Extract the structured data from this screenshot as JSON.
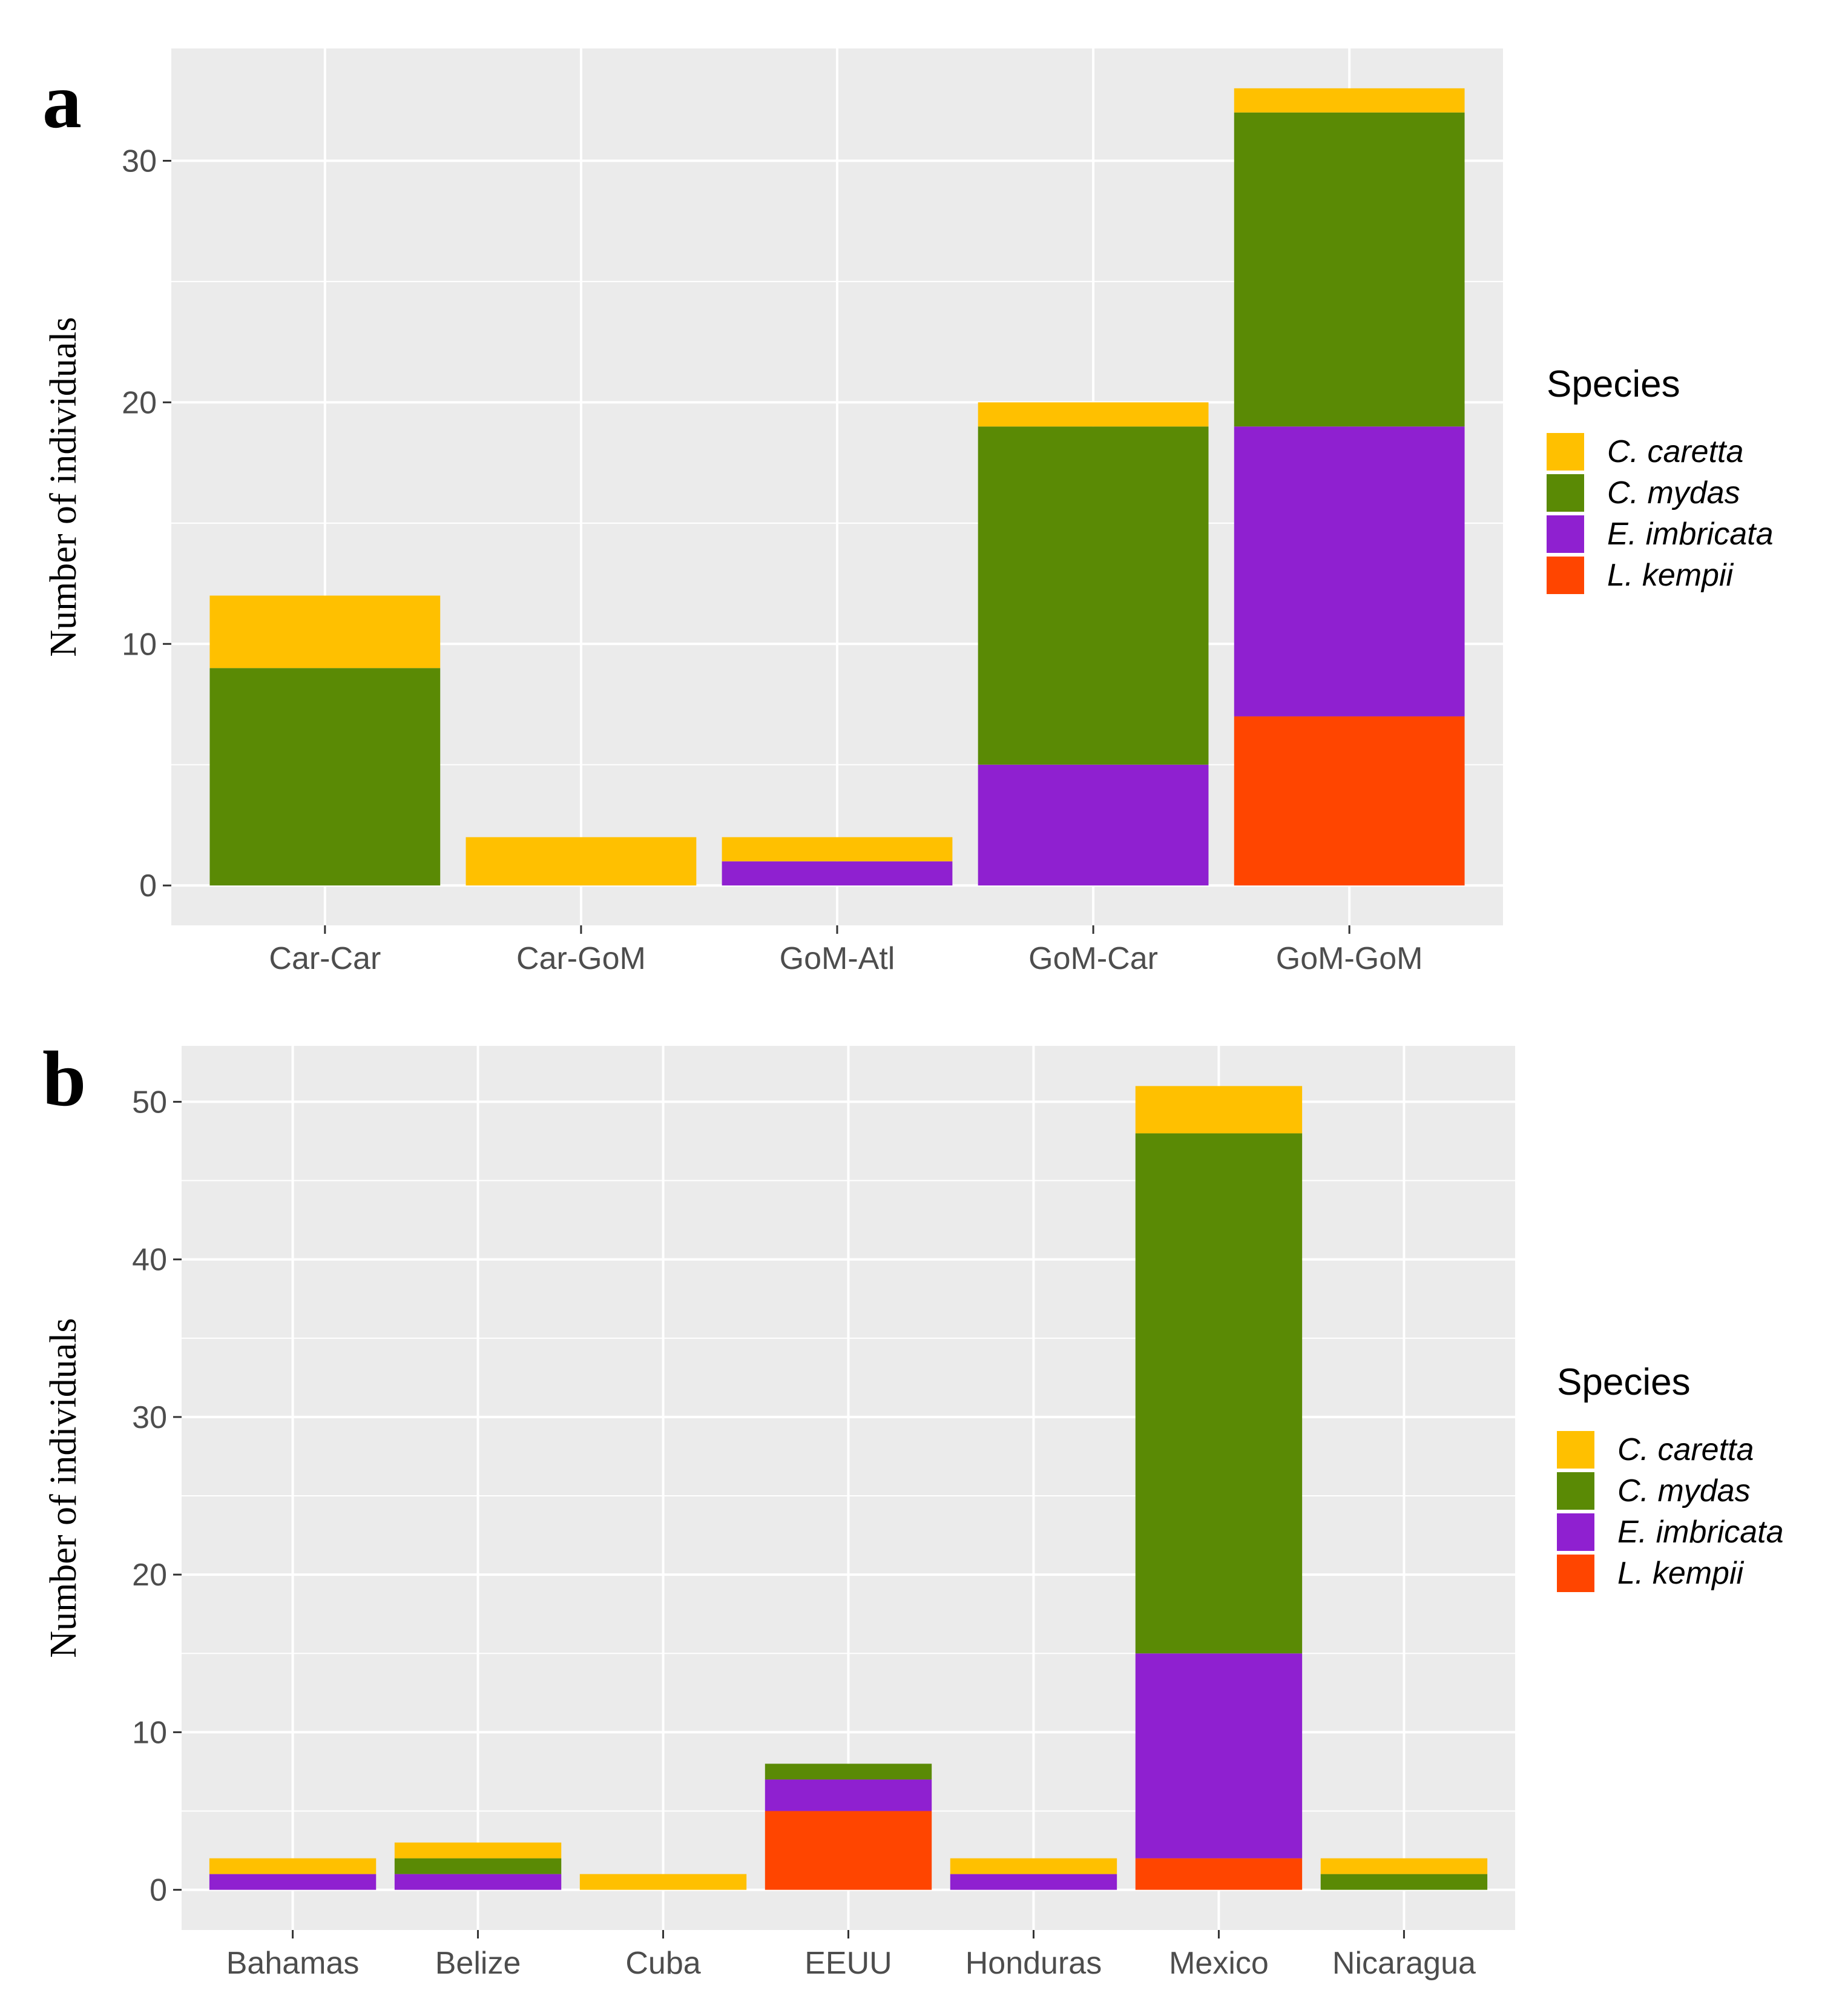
{
  "colors": {
    "C. caretta": "#FFC000",
    "C. mydas": "#5A8A05",
    "E. imbricata": "#8F20D0",
    "L. kempii": "#FF4500",
    "panel_bg": "#EBEBEB",
    "grid": "#FFFFFF"
  },
  "chart_data": [
    {
      "type": "bar",
      "stacked": true,
      "panel_label": "a",
      "title": "",
      "xlabel": "",
      "ylabel": "Number of individuals",
      "categories": [
        "Car-Car",
        "Car-GoM",
        "GoM-Atl",
        "GoM-Car",
        "GoM-GoM"
      ],
      "ylim": [
        0,
        33
      ],
      "yticks": [
        0,
        10,
        20,
        30
      ],
      "series": [
        {
          "name": "L. kempii",
          "values": [
            0,
            0,
            0,
            0,
            7
          ]
        },
        {
          "name": "E. imbricata",
          "values": [
            0,
            0,
            1,
            5,
            12
          ]
        },
        {
          "name": "C. mydas",
          "values": [
            9,
            0,
            0,
            14,
            13
          ]
        },
        {
          "name": "C. caretta",
          "values": [
            3,
            2,
            1,
            1,
            1
          ]
        }
      ],
      "legend": {
        "title": "Species",
        "position": "right",
        "entries": [
          "C. caretta",
          "C. mydas",
          "E. imbricata",
          "L. kempii"
        ]
      }
    },
    {
      "type": "bar",
      "stacked": true,
      "panel_label": "b",
      "title": "",
      "xlabel": "",
      "ylabel": "Number of individuals",
      "categories": [
        "Bahamas",
        "Belize",
        "Cuba",
        "EEUU",
        "Honduras",
        "Mexico",
        "Nicaragua"
      ],
      "ylim": [
        0,
        51
      ],
      "yticks": [
        0,
        10,
        20,
        30,
        40,
        50
      ],
      "series": [
        {
          "name": "L. kempii",
          "values": [
            0,
            0,
            0,
            5,
            0,
            2,
            0
          ]
        },
        {
          "name": "E. imbricata",
          "values": [
            1,
            1,
            0,
            2,
            1,
            13,
            0
          ]
        },
        {
          "name": "C. mydas",
          "values": [
            0,
            1,
            0,
            1,
            0,
            33,
            1
          ]
        },
        {
          "name": "C. caretta",
          "values": [
            1,
            1,
            1,
            0,
            1,
            3,
            1
          ]
        }
      ],
      "legend": {
        "title": "Species",
        "position": "right",
        "entries": [
          "C. caretta",
          "C. mydas",
          "E. imbricata",
          "L. kempii"
        ]
      }
    }
  ]
}
